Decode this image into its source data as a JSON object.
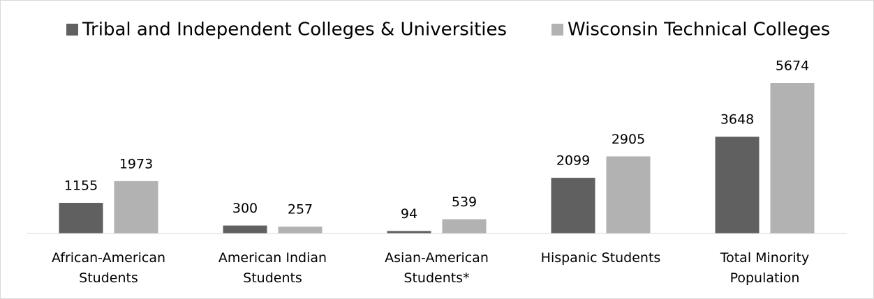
{
  "chart_data": {
    "type": "bar",
    "categories": [
      "African-American Students",
      "American Indian Students",
      "Asian-American Students*",
      "Hispanic Students",
      "Total Minority Population"
    ],
    "series": [
      {
        "name": "Tribal and Independent Colleges & Universities",
        "color": "#606060",
        "values": [
          1155,
          300,
          94,
          2099,
          3648
        ]
      },
      {
        "name": "Wisconsin Technical Colleges",
        "color": "#b2b2b2",
        "values": [
          1973,
          257,
          539,
          2905,
          5674
        ]
      }
    ],
    "legend": "top"
  }
}
